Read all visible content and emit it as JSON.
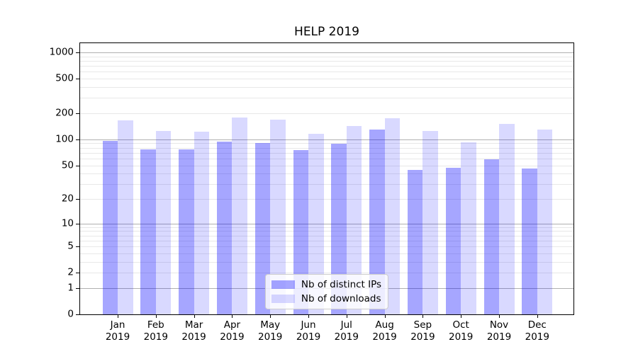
{
  "chart_data": {
    "type": "bar",
    "title": "HELP 2019",
    "y_scale": "log10(1+v)",
    "categories": [
      "Jan",
      "Feb",
      "Mar",
      "Apr",
      "May",
      "Jun",
      "Jul",
      "Aug",
      "Sep",
      "Oct",
      "Nov",
      "Dec"
    ],
    "category_year": "2019",
    "series": [
      {
        "name": "Nb of distinct IPs",
        "color": "rgba(0,0,255,0.35)",
        "values": [
          96,
          76,
          77,
          95,
          91,
          75,
          89,
          131,
          44,
          47,
          59,
          46
        ]
      },
      {
        "name": "Nb of downloads",
        "color": "rgba(0,0,255,0.15)",
        "values": [
          167,
          124,
          123,
          180,
          168,
          115,
          143,
          174,
          124,
          92,
          150,
          130
        ]
      }
    ],
    "yticks": [
      0,
      1,
      2,
      5,
      10,
      20,
      50,
      100,
      200,
      500,
      1000
    ],
    "major_gridlines": [
      1,
      10,
      100,
      1000
    ],
    "minor_gridlines": [
      2,
      3,
      4,
      5,
      6,
      7,
      8,
      9,
      20,
      30,
      40,
      50,
      60,
      70,
      80,
      90,
      200,
      300,
      400,
      500,
      600,
      700,
      800,
      900
    ],
    "ylim": [
      0,
      1276
    ],
    "grid": true,
    "legend_position": "lower center",
    "colors": {
      "major_grid": "#b0b0b0",
      "minor_grid": "#e8e8e8",
      "axis": "#000000",
      "background": "#ffffff"
    }
  }
}
